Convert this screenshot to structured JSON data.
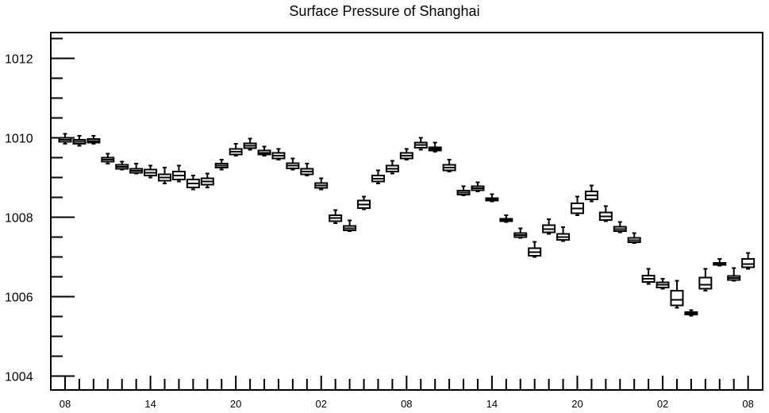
{
  "chart_data": {
    "type": "box",
    "title": "Surface Pressure of Shanghai",
    "xlabel": "",
    "ylabel": "",
    "ylim": [
      1003.65,
      1012.65
    ],
    "yticks": [
      1004,
      1006,
      1008,
      1010,
      1012
    ],
    "xtick_labels": [
      "08",
      "14",
      "20",
      "02",
      "08",
      "14",
      "20",
      "02",
      "08"
    ],
    "grid": false,
    "boxes": [
      {
        "x": 0,
        "low": 1009.85,
        "q1": 1009.9,
        "median": 1009.95,
        "q3": 1010.0,
        "high": 1010.1
      },
      {
        "x": 1,
        "low": 1009.8,
        "q1": 1009.85,
        "median": 1009.9,
        "q3": 1009.95,
        "high": 1010.05
      },
      {
        "x": 2,
        "low": 1009.85,
        "q1": 1009.88,
        "median": 1009.92,
        "q3": 1009.97,
        "high": 1010.05
      },
      {
        "x": 3,
        "low": 1009.35,
        "q1": 1009.4,
        "median": 1009.45,
        "q3": 1009.5,
        "high": 1009.6
      },
      {
        "x": 4,
        "low": 1009.2,
        "q1": 1009.22,
        "median": 1009.27,
        "q3": 1009.32,
        "high": 1009.4
      },
      {
        "x": 5,
        "low": 1009.1,
        "q1": 1009.12,
        "median": 1009.17,
        "q3": 1009.22,
        "high": 1009.35
      },
      {
        "x": 6,
        "low": 1009.0,
        "q1": 1009.05,
        "median": 1009.12,
        "q3": 1009.2,
        "high": 1009.3
      },
      {
        "x": 7,
        "low": 1008.85,
        "q1": 1008.92,
        "median": 1009.0,
        "q3": 1009.08,
        "high": 1009.25
      },
      {
        "x": 8,
        "low": 1008.9,
        "q1": 1008.95,
        "median": 1009.05,
        "q3": 1009.15,
        "high": 1009.3
      },
      {
        "x": 9,
        "low": 1008.7,
        "q1": 1008.75,
        "median": 1008.85,
        "q3": 1008.95,
        "high": 1009.05
      },
      {
        "x": 10,
        "low": 1008.75,
        "q1": 1008.82,
        "median": 1008.9,
        "q3": 1008.98,
        "high": 1009.1
      },
      {
        "x": 11,
        "low": 1009.2,
        "q1": 1009.25,
        "median": 1009.3,
        "q3": 1009.35,
        "high": 1009.45
      },
      {
        "x": 12,
        "low": 1009.55,
        "q1": 1009.58,
        "median": 1009.65,
        "q3": 1009.72,
        "high": 1009.85
      },
      {
        "x": 13,
        "low": 1009.7,
        "q1": 1009.74,
        "median": 1009.8,
        "q3": 1009.86,
        "high": 1009.98
      },
      {
        "x": 14,
        "low": 1009.55,
        "q1": 1009.58,
        "median": 1009.62,
        "q3": 1009.68,
        "high": 1009.78
      },
      {
        "x": 15,
        "low": 1009.45,
        "q1": 1009.48,
        "median": 1009.55,
        "q3": 1009.62,
        "high": 1009.72
      },
      {
        "x": 16,
        "low": 1009.2,
        "q1": 1009.23,
        "median": 1009.3,
        "q3": 1009.36,
        "high": 1009.48
      },
      {
        "x": 17,
        "low": 1009.05,
        "q1": 1009.08,
        "median": 1009.15,
        "q3": 1009.22,
        "high": 1009.35
      },
      {
        "x": 18,
        "low": 1008.7,
        "q1": 1008.74,
        "median": 1008.8,
        "q3": 1008.86,
        "high": 1008.98
      },
      {
        "x": 19,
        "low": 1007.85,
        "q1": 1007.9,
        "median": 1007.98,
        "q3": 1008.05,
        "high": 1008.18
      },
      {
        "x": 20,
        "low": 1007.65,
        "q1": 1007.67,
        "median": 1007.72,
        "q3": 1007.78,
        "high": 1007.92
      },
      {
        "x": 21,
        "low": 1008.2,
        "q1": 1008.23,
        "median": 1008.32,
        "q3": 1008.42,
        "high": 1008.52
      },
      {
        "x": 22,
        "low": 1008.85,
        "q1": 1008.9,
        "median": 1008.97,
        "q3": 1009.05,
        "high": 1009.18
      },
      {
        "x": 23,
        "low": 1009.1,
        "q1": 1009.15,
        "median": 1009.22,
        "q3": 1009.3,
        "high": 1009.42
      },
      {
        "x": 24,
        "low": 1009.45,
        "q1": 1009.48,
        "median": 1009.55,
        "q3": 1009.62,
        "high": 1009.72
      },
      {
        "x": 25,
        "low": 1009.7,
        "q1": 1009.75,
        "median": 1009.82,
        "q3": 1009.88,
        "high": 1010.0
      },
      {
        "x": 26,
        "low": 1009.65,
        "q1": 1009.68,
        "median": 1009.72,
        "q3": 1009.76,
        "high": 1009.88
      },
      {
        "x": 27,
        "low": 1009.15,
        "q1": 1009.18,
        "median": 1009.25,
        "q3": 1009.32,
        "high": 1009.45
      },
      {
        "x": 28,
        "low": 1008.55,
        "q1": 1008.57,
        "median": 1008.62,
        "q3": 1008.67,
        "high": 1008.78
      },
      {
        "x": 29,
        "low": 1008.65,
        "q1": 1008.68,
        "median": 1008.73,
        "q3": 1008.78,
        "high": 1008.88
      },
      {
        "x": 30,
        "low": 1008.4,
        "q1": 1008.42,
        "median": 1008.45,
        "q3": 1008.48,
        "high": 1008.58
      },
      {
        "x": 31,
        "low": 1007.88,
        "q1": 1007.9,
        "median": 1007.93,
        "q3": 1007.96,
        "high": 1008.05
      },
      {
        "x": 32,
        "low": 1007.48,
        "q1": 1007.5,
        "median": 1007.55,
        "q3": 1007.6,
        "high": 1007.72
      },
      {
        "x": 33,
        "low": 1007.0,
        "q1": 1007.03,
        "median": 1007.12,
        "q3": 1007.22,
        "high": 1007.38
      },
      {
        "x": 34,
        "low": 1007.58,
        "q1": 1007.62,
        "median": 1007.7,
        "q3": 1007.8,
        "high": 1007.95
      },
      {
        "x": 35,
        "low": 1007.4,
        "q1": 1007.43,
        "median": 1007.5,
        "q3": 1007.58,
        "high": 1007.75
      },
      {
        "x": 36,
        "low": 1008.05,
        "q1": 1008.1,
        "median": 1008.22,
        "q3": 1008.35,
        "high": 1008.52
      },
      {
        "x": 37,
        "low": 1008.4,
        "q1": 1008.45,
        "median": 1008.55,
        "q3": 1008.65,
        "high": 1008.8
      },
      {
        "x": 38,
        "low": 1007.9,
        "q1": 1007.93,
        "median": 1008.02,
        "q3": 1008.12,
        "high": 1008.28
      },
      {
        "x": 39,
        "low": 1007.62,
        "q1": 1007.65,
        "median": 1007.7,
        "q3": 1007.76,
        "high": 1007.88
      },
      {
        "x": 40,
        "low": 1007.35,
        "q1": 1007.37,
        "median": 1007.42,
        "q3": 1007.48,
        "high": 1007.6
      },
      {
        "x": 41,
        "low": 1006.32,
        "q1": 1006.37,
        "median": 1006.45,
        "q3": 1006.53,
        "high": 1006.7
      },
      {
        "x": 42,
        "low": 1006.2,
        "q1": 1006.23,
        "median": 1006.3,
        "q3": 1006.36,
        "high": 1006.45
      },
      {
        "x": 43,
        "low": 1005.72,
        "q1": 1005.78,
        "median": 1005.92,
        "q3": 1006.15,
        "high": 1006.4
      },
      {
        "x": 44,
        "low": 1005.52,
        "q1": 1005.55,
        "median": 1005.58,
        "q3": 1005.61,
        "high": 1005.66
      },
      {
        "x": 45,
        "low": 1006.15,
        "q1": 1006.2,
        "median": 1006.3,
        "q3": 1006.48,
        "high": 1006.7
      },
      {
        "x": 46,
        "low": 1006.78,
        "q1": 1006.8,
        "median": 1006.82,
        "q3": 1006.85,
        "high": 1006.95
      },
      {
        "x": 47,
        "low": 1006.4,
        "q1": 1006.42,
        "median": 1006.47,
        "q3": 1006.52,
        "high": 1006.72
      },
      {
        "x": 48,
        "low": 1006.7,
        "q1": 1006.74,
        "median": 1006.82,
        "q3": 1006.95,
        "high": 1007.1
      }
    ]
  }
}
